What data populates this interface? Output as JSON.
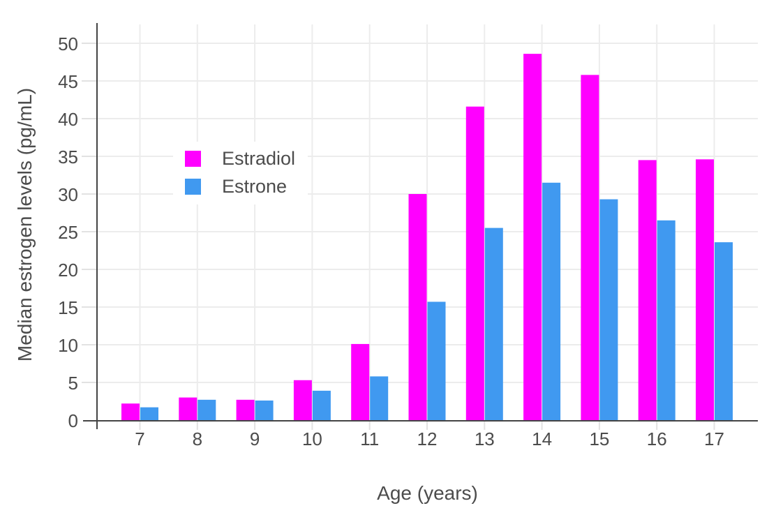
{
  "chart_data": {
    "type": "bar",
    "title": "",
    "xlabel": "Age (years)",
    "ylabel": "Median estrogen levels (pg/mL)",
    "categories": [
      "7",
      "8",
      "9",
      "10",
      "11",
      "12",
      "13",
      "14",
      "15",
      "16",
      "17"
    ],
    "series": [
      {
        "name": "Estradiol",
        "color": "#ff00ff",
        "values": [
          2.2,
          3.0,
          2.7,
          5.3,
          10.1,
          30.0,
          41.6,
          48.6,
          45.8,
          34.5,
          34.6
        ]
      },
      {
        "name": "Estrone",
        "color": "#4099f0",
        "values": [
          1.7,
          2.7,
          2.6,
          3.9,
          5.8,
          15.7,
          25.5,
          31.5,
          29.3,
          26.5,
          23.6
        ]
      }
    ],
    "ylim": [
      0,
      52.5
    ],
    "yticks": [
      0,
      5,
      10,
      15,
      20,
      25,
      30,
      35,
      40,
      45,
      50
    ],
    "grid": true,
    "legend_position": "inside-upper-left",
    "bar_mode": "grouped"
  },
  "styles": {
    "background": "#ffffff",
    "grid_color": "#ececec",
    "tick_color": "#e2e2e2",
    "axis_line_color": "#444444",
    "tick_label_color": "#4c4c4c",
    "title_color": "#4c4c4c"
  }
}
